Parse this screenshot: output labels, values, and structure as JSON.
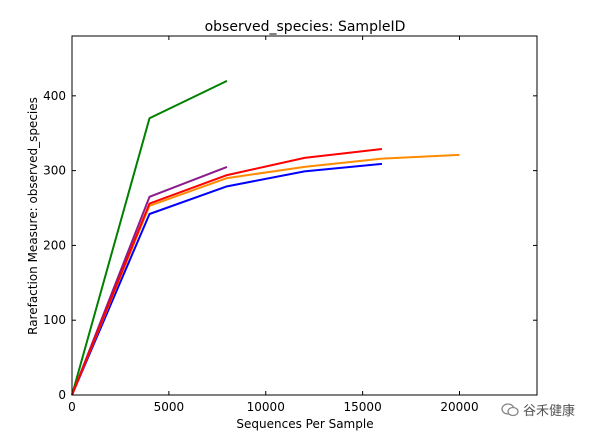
{
  "chart_data": {
    "type": "line",
    "title": "observed_species: SampleID",
    "xlabel": "Sequences Per Sample",
    "ylabel": "Rarefaction Measure: observed_species",
    "xlim": [
      0,
      24000
    ],
    "ylim": [
      0,
      480
    ],
    "xticks": [
      0,
      5000,
      10000,
      15000,
      20000
    ],
    "yticks": [
      0,
      100,
      200,
      300,
      400
    ],
    "grid": false,
    "series": [
      {
        "color": "#008000",
        "x": [
          0,
          4000,
          8000
        ],
        "y": [
          0,
          370,
          420
        ]
      },
      {
        "color": "#8B1A8B",
        "x": [
          0,
          4000,
          8000
        ],
        "y": [
          0,
          265,
          305
        ]
      },
      {
        "color": "#0000FF",
        "x": [
          0,
          4000,
          8000,
          12000,
          16000
        ],
        "y": [
          0,
          242,
          279,
          299,
          309
        ]
      },
      {
        "color": "#FF8C00",
        "x": [
          0,
          4000,
          8000,
          12000,
          16000,
          20000
        ],
        "y": [
          0,
          253,
          290,
          305,
          316,
          321
        ]
      },
      {
        "color": "#FF0000",
        "x": [
          0,
          4000,
          8000,
          12000,
          16000
        ],
        "y": [
          0,
          256,
          294,
          317,
          329
        ]
      }
    ]
  },
  "watermark": {
    "text": "谷禾健康",
    "icon": "wechat-icon"
  }
}
